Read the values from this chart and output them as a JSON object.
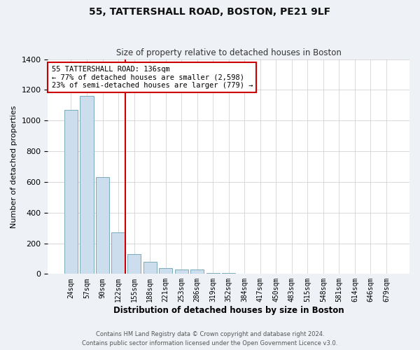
{
  "title1": "55, TATTERSHALL ROAD, BOSTON, PE21 9LF",
  "title2": "Size of property relative to detached houses in Boston",
  "xlabel": "Distribution of detached houses by size in Boston",
  "ylabel": "Number of detached properties",
  "bin_labels": [
    "24sqm",
    "57sqm",
    "90sqm",
    "122sqm",
    "155sqm",
    "188sqm",
    "221sqm",
    "253sqm",
    "286sqm",
    "319sqm",
    "352sqm",
    "384sqm",
    "417sqm",
    "450sqm",
    "483sqm",
    "515sqm",
    "548sqm",
    "581sqm",
    "614sqm",
    "646sqm",
    "679sqm"
  ],
  "bin_values": [
    1070,
    1160,
    630,
    270,
    130,
    80,
    40,
    30,
    30,
    5,
    5,
    0,
    0,
    0,
    0,
    0,
    0,
    0,
    0,
    0,
    0
  ],
  "bar_color": "#ccdded",
  "bar_edge_color": "#7aaabb",
  "annotation_line1": "55 TATTERSHALL ROAD: 136sqm",
  "annotation_line2": "← 77% of detached houses are smaller (2,598)",
  "annotation_line3": "23% of semi-detached houses are larger (779) →",
  "vline_color": "#cc0000",
  "footer_text": "Contains HM Land Registry data © Crown copyright and database right 2024.\nContains public sector information licensed under the Open Government Licence v3.0.",
  "ylim": [
    0,
    1400
  ],
  "background_color": "#eef2f7",
  "plot_bg_color": "#ffffff",
  "grid_color": "#cccccc"
}
